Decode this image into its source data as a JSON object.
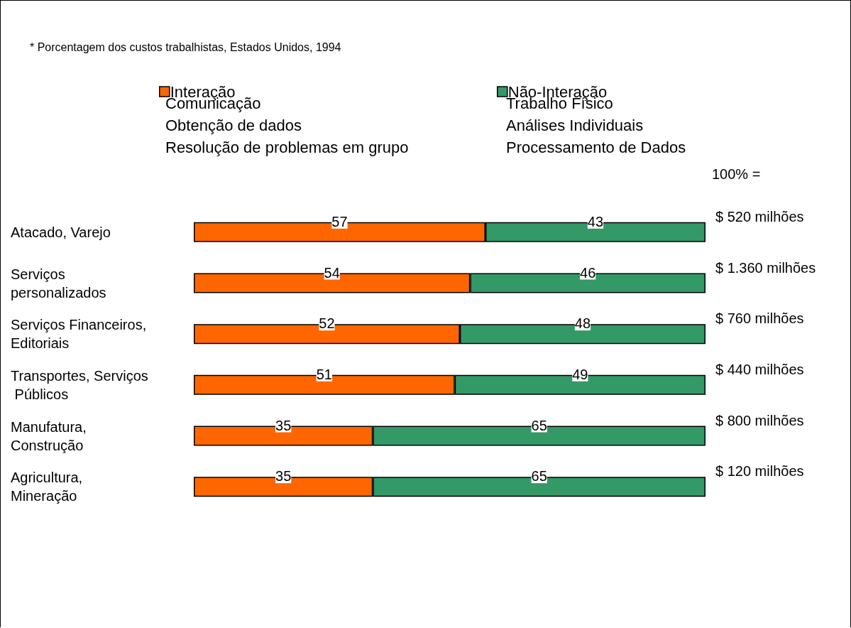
{
  "chart_data": {
    "type": "bar",
    "orientation": "horizontal",
    "stacked": true,
    "subtitle": "* Porcentagem dos custos trabalhistas, Estados Unidos, 1994",
    "categories": [
      "Atacado, Varejo",
      "Serviços personalizados",
      "Serviços Financeiros, Editoriais",
      "Transportes, Serviços Públicos",
      "Manufatura, Construção",
      "Agricultura, Mineração"
    ],
    "series": [
      {
        "name": "Interação",
        "color": "#ff6600",
        "values": [
          57,
          54,
          52,
          51,
          35,
          35
        ]
      },
      {
        "name": "Não-Interação",
        "color": "#339966",
        "values": [
          43,
          46,
          48,
          49,
          65,
          65
        ]
      }
    ],
    "xlim": [
      0,
      100
    ],
    "tick_labels": "y",
    "data_labels": true,
    "legend": "top",
    "annotations": [
      "Comunicação",
      "Obtenção de dados",
      "Resolução de problemas em grupo",
      "Trabalho Físico",
      "Análises Individuais",
      "Processamento de Dados",
      "100% =",
      "$ 520 milhões",
      "$ 1.360 milhões",
      "$ 760 milhões",
      "$ 440 milhões",
      "$ 800 milhões",
      "$ 120 milhões"
    ]
  }
}
